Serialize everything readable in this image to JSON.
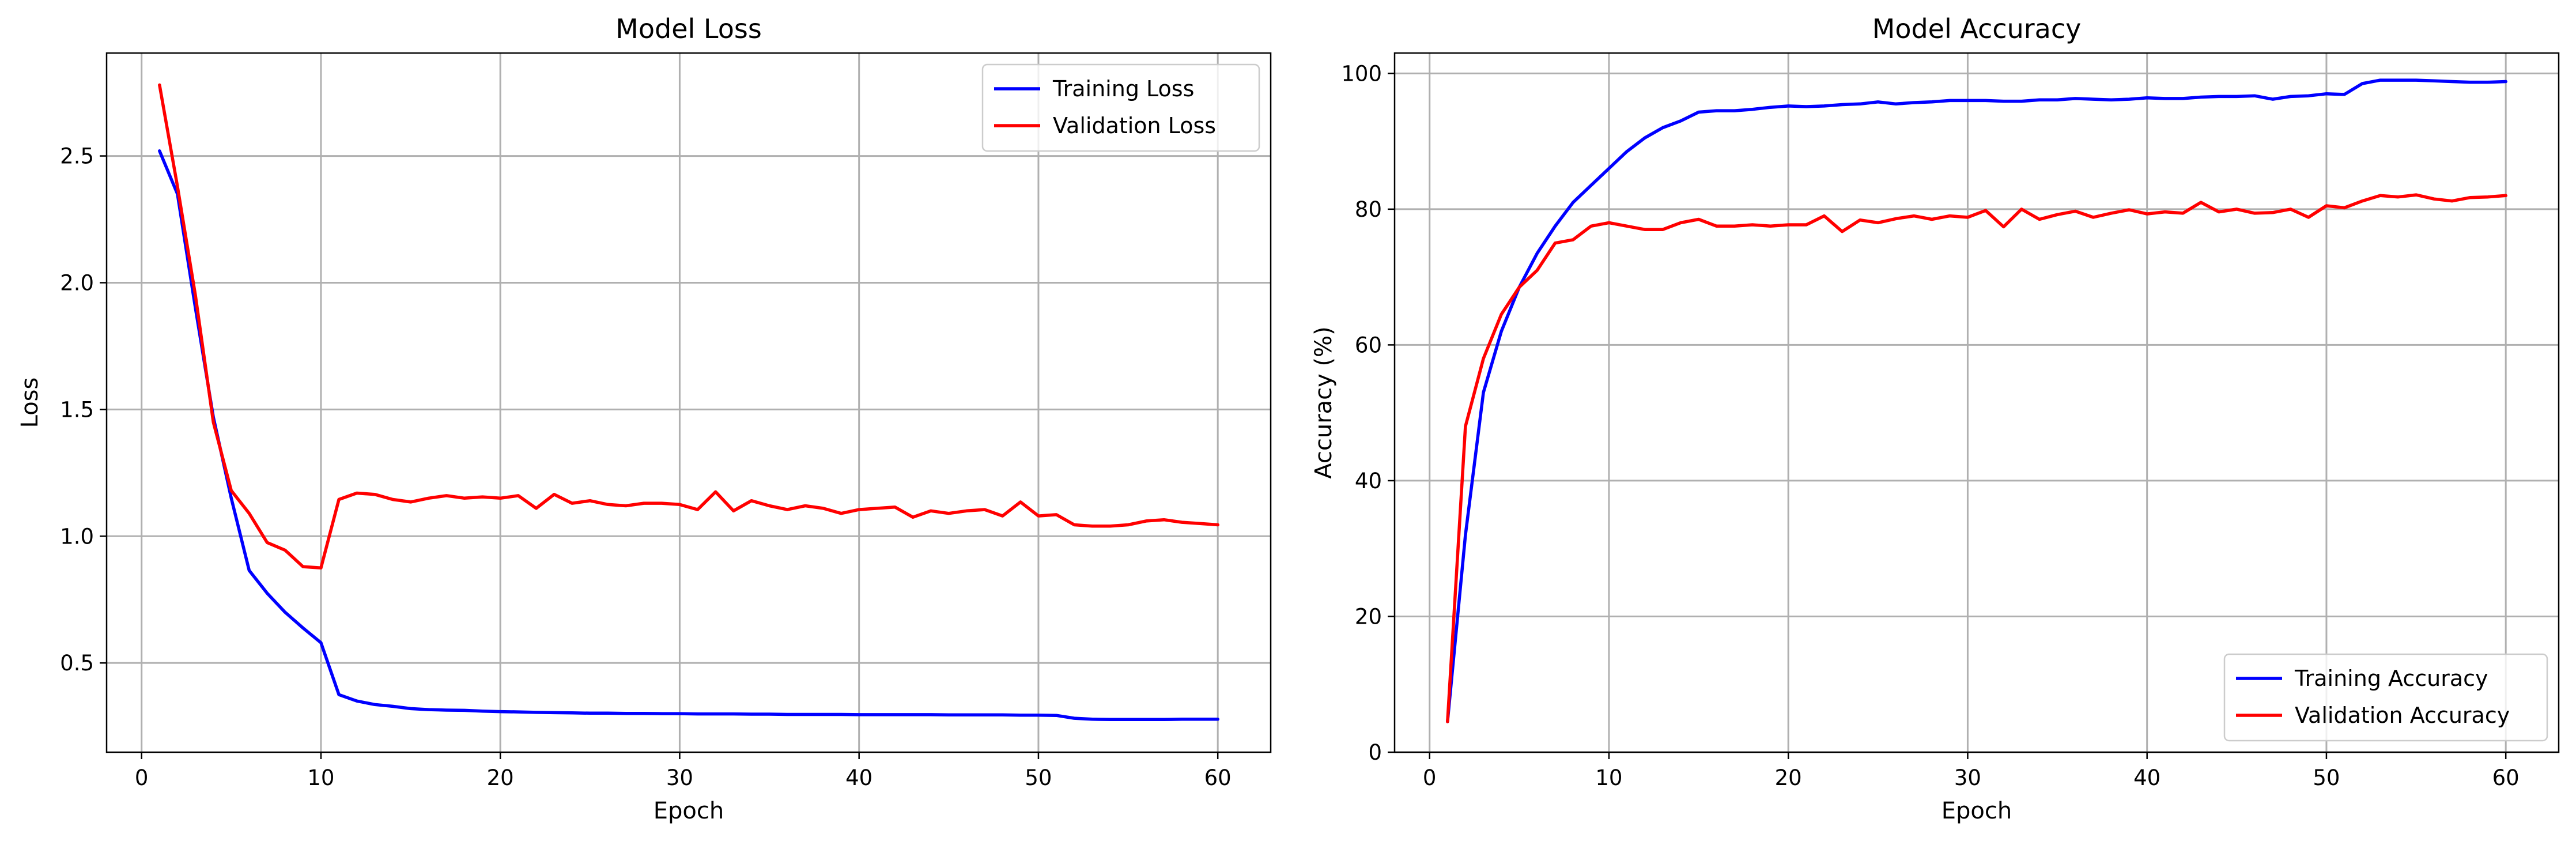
{
  "chart_data": [
    {
      "type": "line",
      "title": "Model Loss",
      "xlabel": "Epoch",
      "ylabel": "Loss",
      "xlim": [
        -1.95,
        62.95
      ],
      "ylim": [
        0.148,
        2.906
      ],
      "xticks": [
        0,
        10,
        20,
        30,
        40,
        50,
        60
      ],
      "yticks": [
        0.5,
        1.0,
        1.5,
        2.0,
        2.5
      ],
      "ytick_decimals": 1,
      "grid": true,
      "legend_position": "top-right",
      "x": [
        1,
        2,
        3,
        4,
        5,
        6,
        7,
        8,
        9,
        10,
        11,
        12,
        13,
        14,
        15,
        16,
        17,
        18,
        19,
        20,
        21,
        22,
        23,
        24,
        25,
        26,
        27,
        28,
        29,
        30,
        31,
        32,
        33,
        34,
        35,
        36,
        37,
        38,
        39,
        40,
        41,
        42,
        43,
        44,
        45,
        46,
        47,
        48,
        49,
        50,
        51,
        52,
        53,
        54,
        55,
        56,
        57,
        58,
        59,
        60
      ],
      "series": [
        {
          "name": "Training Loss",
          "color": "#0000ff",
          "values": [
            2.52,
            2.35,
            1.9,
            1.47,
            1.15,
            0.865,
            0.775,
            0.7,
            0.638,
            0.58,
            0.375,
            0.35,
            0.336,
            0.329,
            0.32,
            0.316,
            0.314,
            0.313,
            0.31,
            0.308,
            0.307,
            0.305,
            0.304,
            0.303,
            0.302,
            0.302,
            0.301,
            0.301,
            0.3,
            0.3,
            0.299,
            0.299,
            0.299,
            0.298,
            0.298,
            0.297,
            0.297,
            0.297,
            0.297,
            0.296,
            0.296,
            0.296,
            0.296,
            0.296,
            0.295,
            0.295,
            0.295,
            0.295,
            0.294,
            0.294,
            0.293,
            0.282,
            0.278,
            0.277,
            0.277,
            0.277,
            0.277,
            0.278,
            0.278,
            0.278
          ]
        },
        {
          "name": "Validation Loss",
          "color": "#ff0000",
          "values": [
            2.78,
            2.38,
            1.95,
            1.45,
            1.18,
            1.09,
            0.975,
            0.945,
            0.88,
            0.875,
            1.145,
            1.17,
            1.165,
            1.145,
            1.135,
            1.15,
            1.16,
            1.15,
            1.155,
            1.15,
            1.16,
            1.11,
            1.165,
            1.13,
            1.14,
            1.125,
            1.12,
            1.13,
            1.13,
            1.125,
            1.105,
            1.175,
            1.1,
            1.14,
            1.12,
            1.105,
            1.12,
            1.11,
            1.09,
            1.105,
            1.11,
            1.115,
            1.075,
            1.1,
            1.09,
            1.1,
            1.105,
            1.08,
            1.135,
            1.08,
            1.085,
            1.045,
            1.04,
            1.04,
            1.045,
            1.06,
            1.065,
            1.055,
            1.05,
            1.045
          ]
        }
      ]
    },
    {
      "type": "line",
      "title": "Model Accuracy",
      "xlabel": "Epoch",
      "ylabel": "Accuracy (%)",
      "xlim": [
        -1.95,
        62.95
      ],
      "ylim": [
        0,
        103
      ],
      "xticks": [
        0,
        10,
        20,
        30,
        40,
        50,
        60
      ],
      "yticks": [
        0,
        20,
        40,
        60,
        80,
        100
      ],
      "ytick_decimals": 0,
      "grid": true,
      "legend_position": "bottom-right",
      "x": [
        1,
        2,
        3,
        4,
        5,
        6,
        7,
        8,
        9,
        10,
        11,
        12,
        13,
        14,
        15,
        16,
        17,
        18,
        19,
        20,
        21,
        22,
        23,
        24,
        25,
        26,
        27,
        28,
        29,
        30,
        31,
        32,
        33,
        34,
        35,
        36,
        37,
        38,
        39,
        40,
        41,
        42,
        43,
        44,
        45,
        46,
        47,
        48,
        49,
        50,
        51,
        52,
        53,
        54,
        55,
        56,
        57,
        58,
        59,
        60
      ],
      "series": [
        {
          "name": "Training Accuracy",
          "color": "#0000ff",
          "values": [
            4.5,
            32,
            53,
            62,
            68.5,
            73.5,
            77.5,
            81,
            83.5,
            86,
            88.5,
            90.5,
            92,
            93,
            94.3,
            94.5,
            94.5,
            94.7,
            95,
            95.2,
            95.1,
            95.2,
            95.4,
            95.5,
            95.8,
            95.5,
            95.7,
            95.8,
            96,
            96,
            96,
            95.9,
            95.9,
            96.1,
            96.1,
            96.3,
            96.2,
            96.1,
            96.2,
            96.4,
            96.3,
            96.3,
            96.5,
            96.6,
            96.6,
            96.7,
            96.2,
            96.6,
            96.7,
            97,
            96.9,
            98.5,
            99,
            99,
            99,
            98.9,
            98.8,
            98.7,
            98.7,
            98.8
          ]
        },
        {
          "name": "Validation Accuracy",
          "color": "#ff0000",
          "values": [
            4.5,
            48,
            58,
            64.5,
            68.5,
            71,
            75,
            75.5,
            77.5,
            78,
            77.5,
            77,
            77,
            78,
            78.5,
            77.5,
            77.5,
            77.7,
            77.5,
            77.7,
            77.7,
            79,
            76.7,
            78.4,
            78,
            78.6,
            79,
            78.5,
            79,
            78.8,
            79.8,
            77.4,
            80,
            78.5,
            79.2,
            79.7,
            78.8,
            79.4,
            79.9,
            79.3,
            79.6,
            79.4,
            81,
            79.6,
            80,
            79.4,
            79.5,
            80,
            78.8,
            80.5,
            80.2,
            81.2,
            82,
            81.8,
            82.1,
            81.5,
            81.2,
            81.7,
            81.8,
            82
          ]
        }
      ]
    }
  ]
}
